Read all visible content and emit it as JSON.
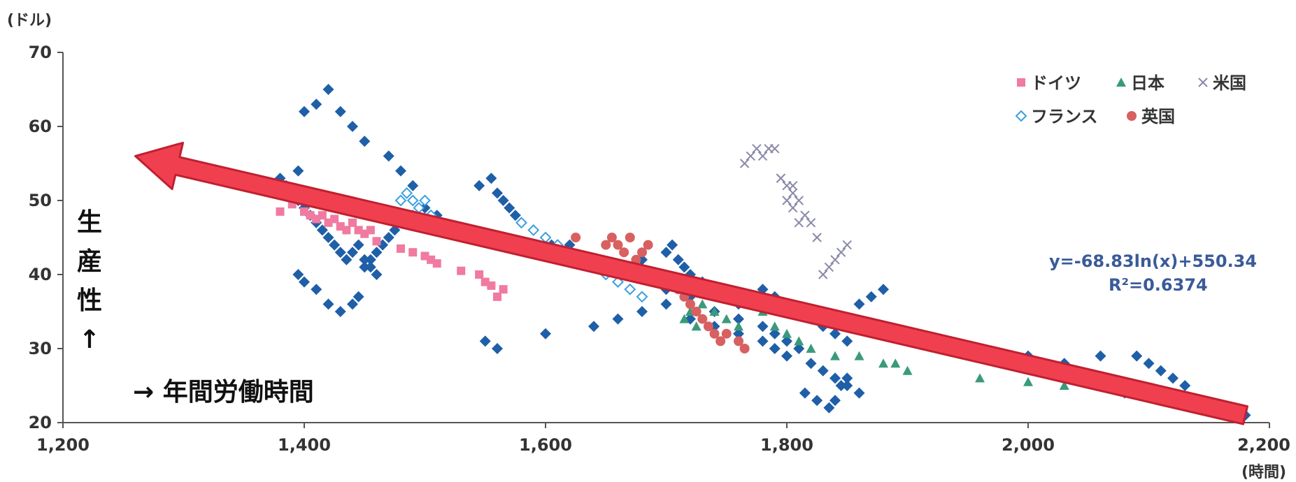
{
  "chart_data": {
    "type": "scatter",
    "title": "",
    "xlabel": "→ 年間労働時間",
    "ylabel_chars": [
      "生",
      "産",
      "性",
      "↑"
    ],
    "x_unit": "(時間)",
    "y_unit": "(ドル)",
    "xlim": [
      1200,
      2200
    ],
    "ylim": [
      20,
      70
    ],
    "x_ticks": [
      "1,200",
      "1,400",
      "1,600",
      "1,800",
      "2,000",
      "2,200"
    ],
    "y_ticks": [
      "20",
      "30",
      "40",
      "50",
      "60",
      "70"
    ],
    "grid": false,
    "legend_position": "top-right",
    "trendline": {
      "equation": "y=-68.83ln(x)+550.34",
      "r2": "R²=0.6374",
      "from": [
        2180,
        21
      ],
      "to": [
        1260,
        56
      ]
    },
    "series": [
      {
        "name": "ドイツ",
        "color": "#f07aa0",
        "marker": "square",
        "x": [
          1380,
          1390,
          1400,
          1405,
          1410,
          1415,
          1420,
          1425,
          1430,
          1435,
          1440,
          1445,
          1450,
          1455,
          1460,
          1480,
          1490,
          1500,
          1505,
          1510,
          1530,
          1545,
          1550,
          1555,
          1560,
          1565
        ],
        "y": [
          48.5,
          49.5,
          48.5,
          48,
          47.5,
          48,
          47,
          47.5,
          46.5,
          46,
          47,
          46,
          45.5,
          46,
          44.5,
          43.5,
          43,
          42.5,
          42,
          41.5,
          40.5,
          40,
          39,
          38.5,
          37,
          38
        ]
      },
      {
        "name": "日本",
        "color": "#3a9a7a",
        "marker": "triangle",
        "x": [
          1715,
          1720,
          1725,
          1730,
          1740,
          1750,
          1760,
          1770,
          1780,
          1790,
          1800,
          1810,
          1820,
          1840,
          1860,
          1880,
          1890,
          1900,
          1960,
          2000,
          2030
        ],
        "y": [
          34,
          35,
          33,
          36,
          35,
          34,
          33,
          36,
          35,
          33,
          32,
          31,
          30,
          29,
          29,
          28,
          28,
          27,
          26,
          25.5,
          25
        ]
      },
      {
        "name": "米国",
        "color": "#8a8aaa",
        "marker": "x",
        "x": [
          1765,
          1770,
          1775,
          1780,
          1785,
          1790,
          1795,
          1800,
          1805,
          1810,
          1815,
          1820,
          1825,
          1830,
          1835,
          1840,
          1845,
          1850,
          1805,
          1800,
          1795,
          1805,
          1810
        ],
        "y": [
          55,
          56,
          57,
          56,
          57,
          57,
          53,
          52,
          51,
          50,
          48,
          47,
          45,
          40,
          41,
          42,
          43,
          44,
          49,
          50,
          53,
          52,
          47
        ]
      },
      {
        "name": "フランス",
        "color": "#3aa0e0",
        "marker": "diamond-open",
        "x": [
          1480,
          1485,
          1490,
          1495,
          1500,
          1505,
          1510,
          1580,
          1590,
          1600,
          1610,
          1620,
          1630,
          1640,
          1650,
          1660,
          1670,
          1680
        ],
        "y": [
          50,
          51,
          50,
          49,
          50,
          48,
          47,
          47,
          46,
          45,
          44,
          43,
          42,
          41,
          40,
          39,
          38,
          37
        ]
      },
      {
        "name": "英国",
        "color": "#d86060",
        "marker": "circle",
        "x": [
          1625,
          1650,
          1655,
          1660,
          1665,
          1670,
          1675,
          1680,
          1685,
          1690,
          1700,
          1710,
          1715,
          1720,
          1725,
          1730,
          1735,
          1740,
          1745,
          1750,
          1760,
          1765
        ],
        "y": [
          45,
          44,
          45,
          44,
          43,
          45,
          42,
          43,
          44,
          40,
          39,
          38,
          37,
          36,
          35,
          34,
          33,
          32,
          31,
          32,
          31,
          30
        ]
      },
      {
        "name": "",
        "color": "#1f5fa8",
        "marker": "diamond",
        "x": [
          1380,
          1390,
          1395,
          1400,
          1405,
          1410,
          1415,
          1420,
          1425,
          1430,
          1435,
          1440,
          1445,
          1450,
          1455,
          1460,
          1380,
          1385,
          1395,
          1400,
          1410,
          1420,
          1430,
          1440,
          1450,
          1470,
          1480,
          1490,
          1500,
          1510,
          1545,
          1555,
          1560,
          1565,
          1570,
          1575,
          1580,
          1590,
          1600,
          1605,
          1610,
          1620,
          1630,
          1640,
          1650,
          1660,
          1670,
          1680,
          1690,
          1700,
          1705,
          1710,
          1715,
          1720,
          1730,
          1740,
          1750,
          1760,
          1770,
          1780,
          1790,
          1800,
          1810,
          1820,
          1830,
          1840,
          1850,
          1860,
          1870,
          1880,
          1550,
          1560,
          1600,
          1640,
          1660,
          1680,
          1700,
          1720,
          1740,
          1760,
          1780,
          1790,
          1800,
          1820,
          1830,
          1840,
          1850,
          1860,
          2000,
          2010,
          2020,
          2030,
          2060,
          2080,
          2090,
          2100,
          2110,
          2120,
          2130,
          2150,
          2170,
          2180,
          1395,
          1400,
          1410,
          1420,
          1430,
          1440,
          1445,
          1450,
          1455,
          1460,
          1465,
          1470,
          1475,
          1480,
          1490,
          1500,
          1700,
          1720,
          1740,
          1760,
          1780,
          1790,
          1800,
          1810,
          1815,
          1825,
          1835,
          1840,
          1845,
          1850
        ],
        "y": [
          52,
          51,
          50,
          49,
          48,
          47,
          46,
          45,
          44,
          43,
          42,
          43,
          44,
          42,
          41,
          40,
          53,
          52,
          54,
          62,
          63,
          65,
          62,
          60,
          58,
          56,
          54,
          52,
          50,
          48,
          52,
          53,
          51,
          50,
          49,
          48,
          47,
          46,
          45,
          44,
          43,
          44,
          42,
          41,
          40,
          39,
          41,
          42,
          40,
          43,
          44,
          42,
          41,
          40,
          39,
          38,
          37,
          36,
          37,
          38,
          37,
          36,
          35,
          34,
          33,
          32,
          31,
          36,
          37,
          38,
          31,
          30,
          32,
          33,
          34,
          35,
          36,
          34,
          33,
          32,
          31,
          30,
          29,
          28,
          27,
          26,
          25,
          24,
          29,
          28,
          27,
          28,
          29,
          24,
          29,
          28,
          27,
          26,
          25,
          22,
          21,
          21,
          40,
          39,
          38,
          36,
          35,
          36,
          37,
          41,
          42,
          43,
          44,
          45,
          46,
          47,
          48,
          49,
          38,
          37,
          35,
          34,
          33,
          32,
          31,
          30,
          24,
          23,
          22,
          23,
          25,
          26
        ]
      }
    ]
  }
}
